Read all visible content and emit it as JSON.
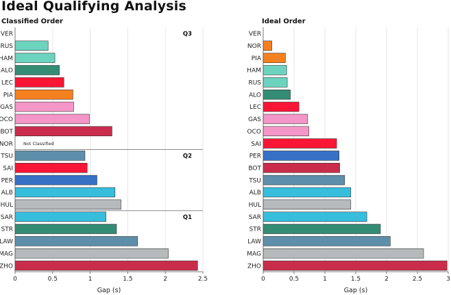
{
  "title": "Ideal Qualifying Analysis",
  "colors": {
    "VER": "#3a4fa8",
    "NOR": "#f58020",
    "PIA": "#f58020",
    "HAM": "#6cd3bf",
    "RUS": "#6cd3bf",
    "ALO": "#358c75",
    "STR": "#358c75",
    "LEC": "#f91536",
    "SAI": "#f91536",
    "GAS": "#f596c8",
    "OCO": "#f596c8",
    "BOT": "#c92d4b",
    "ZHO": "#c92d4b",
    "TSU": "#5e8faa",
    "LAW": "#5e8faa",
    "PER": "#3671c6",
    "ALB": "#37bedd",
    "SAR": "#37bedd",
    "HUL": "#b6babd",
    "MAG": "#b6babd"
  },
  "chart_data": [
    {
      "type": "bar",
      "orientation": "horizontal",
      "title": "Classified Order",
      "xlabel": "Gap (s)",
      "xlim": [
        0,
        2.5
      ],
      "xticks": [
        "0",
        "0.5",
        "1",
        "1.5",
        "2",
        "2.5"
      ],
      "grid": true,
      "categories": [
        "VER",
        "RUS",
        "HAM",
        "ALO",
        "LEC",
        "PIA",
        "GAS",
        "OCO",
        "BOT",
        "NOR",
        "TSU",
        "SAI",
        "PER",
        "ALB",
        "HUL",
        "SAR",
        "STR",
        "LAW",
        "MAG",
        "ZHO"
      ],
      "values": [
        0,
        0.44,
        0.53,
        0.59,
        0.65,
        0.77,
        0.78,
        0.99,
        1.29,
        null,
        0.93,
        0.96,
        1.09,
        1.33,
        1.41,
        1.21,
        1.35,
        1.63,
        2.04,
        2.43
      ],
      "annotations": {
        "not_classified": {
          "driver": "NOR",
          "text": "Not Classified"
        },
        "sessions": [
          {
            "label": "Q3",
            "start": "VER",
            "end": "NOR"
          },
          {
            "label": "Q2",
            "start": "TSU",
            "end": "HUL"
          },
          {
            "label": "Q1",
            "start": "SAR",
            "end": "ZHO"
          }
        ]
      }
    },
    {
      "type": "bar",
      "orientation": "horizontal",
      "title": "Ideal Order",
      "xlabel": "Gap (s)",
      "xlim": [
        0,
        3
      ],
      "xticks": [
        "0",
        "0.5",
        "1",
        "1.5",
        "2",
        "2.5",
        "3"
      ],
      "grid": true,
      "categories": [
        "VER",
        "NOR",
        "PIA",
        "HAM",
        "RUS",
        "ALO",
        "LEC",
        "GAS",
        "OCO",
        "SAI",
        "PER",
        "BOT",
        "TSU",
        "ALB",
        "HUL",
        "SAR",
        "STR",
        "LAW",
        "MAG",
        "ZHO"
      ],
      "values": [
        0,
        0.14,
        0.36,
        0.38,
        0.39,
        0.44,
        0.58,
        0.72,
        0.74,
        1.19,
        1.23,
        1.24,
        1.32,
        1.42,
        1.42,
        1.68,
        1.9,
        2.06,
        2.6,
        2.98
      ]
    }
  ]
}
